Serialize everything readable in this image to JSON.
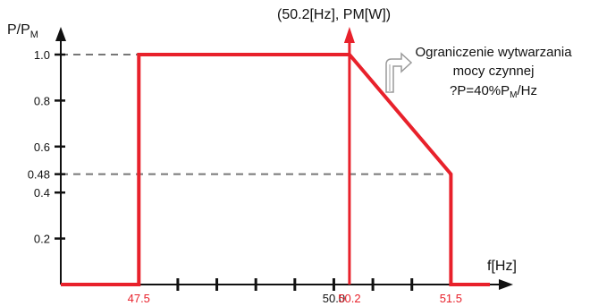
{
  "chart_data": {
    "type": "line",
    "title": "",
    "xlabel": "f[Hz]",
    "ylabel_main": "P/P",
    "ylabel_sub": "M",
    "ylim": [
      0,
      1.0
    ],
    "xlim": [
      46.5,
      52.0
    ],
    "y_ticks": [
      0.2,
      0.4,
      0.48,
      0.6,
      0.8,
      1.0
    ],
    "y_tick_labels": [
      "0.2",
      "0.4",
      "0.48",
      "0.6",
      "0.8",
      "1.0"
    ],
    "x_ticks_unlabeled": [
      48.0,
      48.5,
      49.0,
      49.5,
      50.0,
      50.5,
      51.0
    ],
    "x_labels": [
      {
        "x": 47.5,
        "text": "47.5",
        "color": "#e8212b"
      },
      {
        "x": 50.0,
        "text": "50.0",
        "color": "#111111"
      },
      {
        "x": 50.2,
        "text": "50.2",
        "color": "#e8212b"
      },
      {
        "x": 51.5,
        "text": "51.5",
        "color": "#e8212b"
      }
    ],
    "series": [
      {
        "color": "#e8212b",
        "points": [
          [
            46.5,
            0
          ],
          [
            47.5,
            0
          ],
          [
            47.5,
            1.0
          ],
          [
            50.2,
            1.0
          ],
          [
            51.5,
            0.48
          ],
          [
            51.5,
            0
          ],
          [
            52.0,
            0
          ]
        ]
      }
    ],
    "guides": {
      "y_1_0": {
        "from_x": 46.5,
        "to_x": 50.2,
        "y": 1.0
      },
      "y_0_48": {
        "from_x": 46.5,
        "to_x": 51.5,
        "y": 0.48
      },
      "x_50_2": {
        "x": 50.2,
        "from_y": 0,
        "to_y": 1.0
      }
    },
    "vertical_marker_x": 50.2,
    "marker_label": "(50.2[Hz], PM[W])",
    "annotation": {
      "line1": "Ograniczenie wytwarzania",
      "line2": "mocy czynnej",
      "line3_prefix": "?P=40%P",
      "line3_sub": "M",
      "line3_suffix": "/Hz"
    },
    "colors": {
      "red": "#e8212b",
      "axis": "#111111",
      "guide": "#777777",
      "arrow_icon": "#9a9a9a"
    },
    "grid": false
  }
}
